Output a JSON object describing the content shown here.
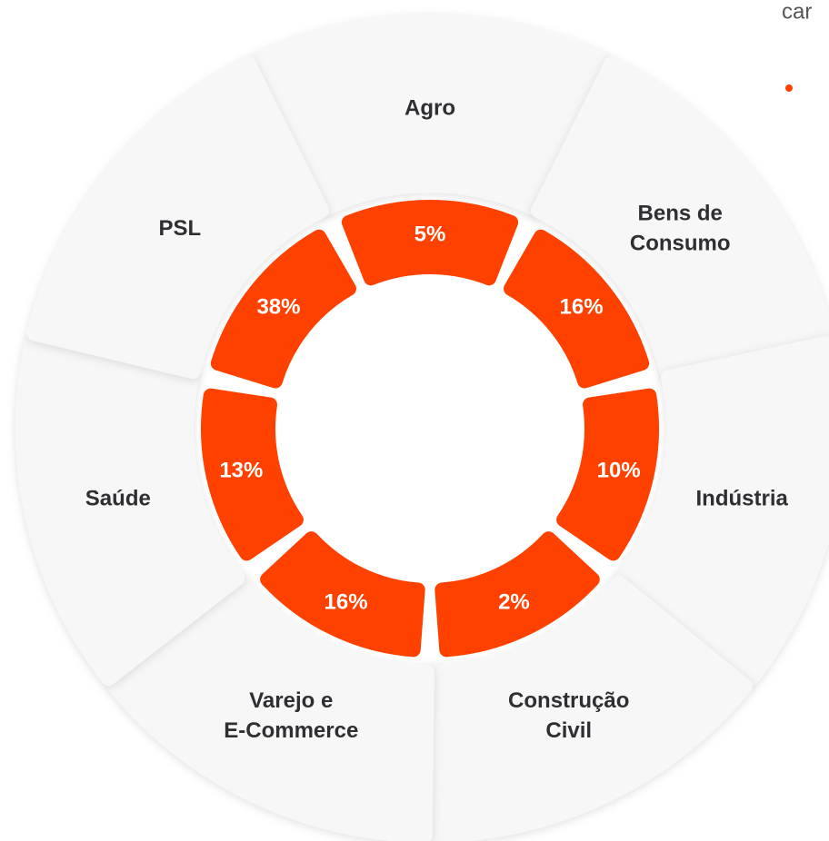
{
  "header_fragment": "car",
  "segments": [
    {
      "lines": [
        "Agro"
      ],
      "value": "5%"
    },
    {
      "lines": [
        "Bens de",
        "Consumo"
      ],
      "value": "16%"
    },
    {
      "lines": [
        "Indústria"
      ],
      "value": "10%"
    },
    {
      "lines": [
        "Construção",
        "Civil"
      ],
      "value": "2%"
    },
    {
      "lines": [
        "Varejo e",
        "E-Commerce"
      ],
      "value": "16%"
    },
    {
      "lines": [
        "Saúde"
      ],
      "value": "13%"
    },
    {
      "lines": [
        "PSL"
      ],
      "value": "38%"
    }
  ]
}
